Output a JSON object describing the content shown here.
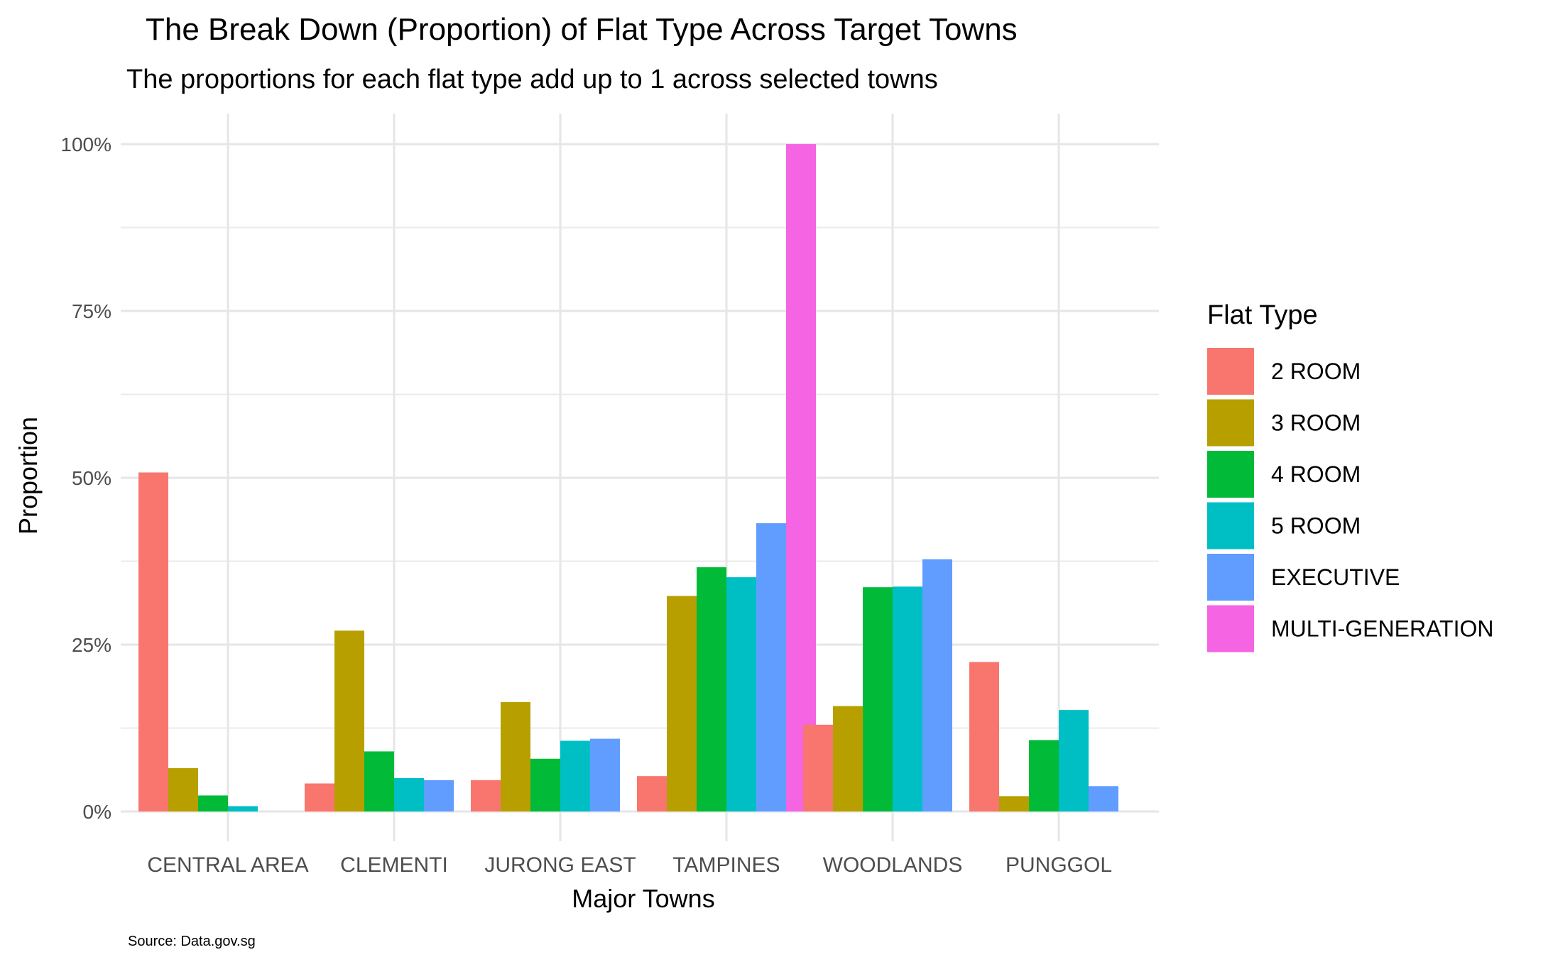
{
  "chart_data": {
    "type": "bar",
    "title": "The Break Down (Proportion) of Flat Type Across Target Towns",
    "subtitle": "The proportions for each flat type add up to 1 across selected towns",
    "xlabel": "Major Towns",
    "ylabel": "Proportion",
    "caption": "Source: Data.gov.sg",
    "ylim": [
      0,
      1
    ],
    "y_ticks": [
      0,
      0.25,
      0.5,
      0.75,
      1
    ],
    "y_tick_labels": [
      "0%",
      "25%",
      "50%",
      "75%",
      "100%"
    ],
    "grid": true,
    "legend_title": "Flat Type",
    "legend_position": "right",
    "categories": [
      "CENTRAL AREA",
      "CLEMENTI",
      "JURONG EAST",
      "TAMPINES",
      "WOODLANDS",
      "PUNGGOL"
    ],
    "series": [
      {
        "name": "2 ROOM",
        "color": "#F8766D",
        "values": [
          0.508,
          0.042,
          0.047,
          0.053,
          0.13,
          0.224
        ]
      },
      {
        "name": "3 ROOM",
        "color": "#B79F00",
        "values": [
          0.065,
          0.271,
          0.164,
          0.323,
          0.158,
          0.023
        ]
      },
      {
        "name": "4 ROOM",
        "color": "#00BA38",
        "values": [
          0.024,
          0.09,
          0.079,
          0.366,
          0.336,
          0.107
        ]
      },
      {
        "name": "5 ROOM",
        "color": "#00BFC4",
        "values": [
          0.008,
          0.05,
          0.106,
          0.351,
          0.337,
          0.152
        ]
      },
      {
        "name": "EXECUTIVE",
        "color": "#619CFF",
        "values": [
          null,
          0.047,
          0.109,
          0.432,
          0.378,
          0.038
        ]
      },
      {
        "name": "MULTI-GENERATION",
        "color": "#F564E3",
        "values": [
          null,
          null,
          null,
          1.0,
          null,
          null
        ]
      }
    ]
  }
}
